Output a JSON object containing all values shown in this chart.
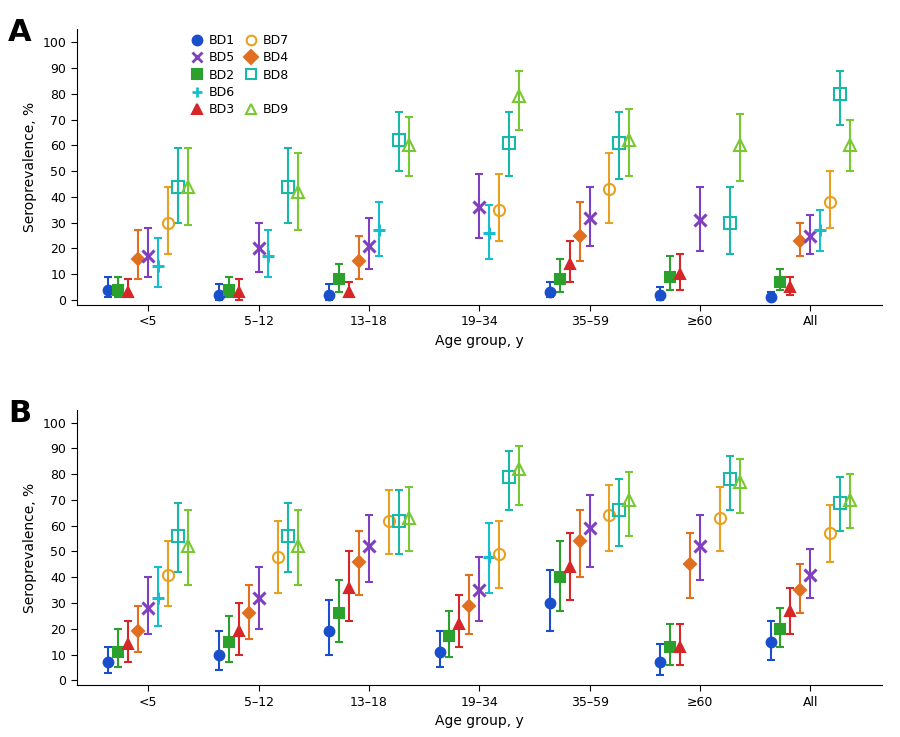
{
  "age_groups": [
    "<5",
    "5–12",
    "13–18",
    "19–34",
    "35–59",
    "≥60",
    "All"
  ],
  "age_x": [
    0,
    1,
    2,
    3,
    4,
    5,
    6
  ],
  "series_order": [
    "BD1",
    "BD2",
    "BD3",
    "BD4",
    "BD5",
    "BD6",
    "BD7",
    "BD8",
    "BD9"
  ],
  "series_info": {
    "BD1": {
      "color": "#1a4fcc",
      "marker": "o",
      "filled": true,
      "ms": 7,
      "mew": 1.5
    },
    "BD2": {
      "color": "#2ca02c",
      "marker": "s",
      "filled": true,
      "ms": 7,
      "mew": 1.5
    },
    "BD3": {
      "color": "#d62728",
      "marker": "^",
      "filled": true,
      "ms": 7,
      "mew": 1.5
    },
    "BD4": {
      "color": "#e07020",
      "marker": "D",
      "filled": true,
      "ms": 6,
      "mew": 1.5
    },
    "BD5": {
      "color": "#7f3fbf",
      "marker": "x",
      "filled": true,
      "ms": 8,
      "mew": 2.2
    },
    "BD6": {
      "color": "#17becf",
      "marker": "+",
      "filled": true,
      "ms": 9,
      "mew": 2.2
    },
    "BD7": {
      "color": "#e8a020",
      "marker": "o",
      "filled": false,
      "ms": 8,
      "mew": 1.5
    },
    "BD8": {
      "color": "#1ab8a8",
      "marker": "s",
      "filled": false,
      "ms": 8,
      "mew": 1.5
    },
    "BD9": {
      "color": "#78c832",
      "marker": "^",
      "filled": false,
      "ms": 8,
      "mew": 1.5
    }
  },
  "panel_A": {
    "BD1": {
      "y": [
        4,
        2,
        2,
        null,
        3,
        2,
        1
      ],
      "ylo": [
        1,
        0,
        0,
        null,
        1,
        0,
        0
      ],
      "yhi": [
        9,
        6,
        6,
        null,
        7,
        5,
        3
      ]
    },
    "BD2": {
      "y": [
        4,
        4,
        8,
        null,
        8,
        9,
        7
      ],
      "ylo": [
        1,
        1,
        3,
        null,
        3,
        4,
        4
      ],
      "yhi": [
        9,
        9,
        14,
        null,
        16,
        17,
        12
      ]
    },
    "BD3": {
      "y": [
        3,
        3,
        3,
        null,
        14,
        10,
        5
      ],
      "ylo": [
        1,
        0,
        1,
        null,
        7,
        4,
        2
      ],
      "yhi": [
        8,
        8,
        7,
        null,
        23,
        18,
        9
      ]
    },
    "BD4": {
      "y": [
        16,
        null,
        15,
        null,
        25,
        null,
        23
      ],
      "ylo": [
        8,
        null,
        8,
        null,
        15,
        null,
        17
      ],
      "yhi": [
        27,
        null,
        25,
        null,
        38,
        null,
        30
      ]
    },
    "BD5": {
      "y": [
        17,
        20,
        21,
        36,
        32,
        31,
        25
      ],
      "ylo": [
        9,
        11,
        12,
        24,
        21,
        19,
        18
      ],
      "yhi": [
        28,
        30,
        32,
        49,
        44,
        44,
        33
      ]
    },
    "BD6": {
      "y": [
        13,
        17,
        27,
        26,
        null,
        null,
        27
      ],
      "ylo": [
        5,
        9,
        17,
        16,
        null,
        null,
        19
      ],
      "yhi": [
        24,
        27,
        38,
        37,
        null,
        null,
        35
      ]
    },
    "BD7": {
      "y": [
        30,
        null,
        null,
        35,
        43,
        null,
        38
      ],
      "ylo": [
        18,
        null,
        null,
        23,
        30,
        null,
        28
      ],
      "yhi": [
        44,
        null,
        null,
        49,
        57,
        null,
        50
      ]
    },
    "BD8": {
      "y": [
        44,
        44,
        62,
        61,
        61,
        30,
        80
      ],
      "ylo": [
        30,
        30,
        50,
        48,
        47,
        18,
        68
      ],
      "yhi": [
        59,
        59,
        73,
        73,
        73,
        44,
        89
      ]
    },
    "BD9": {
      "y": [
        44,
        42,
        60,
        79,
        62,
        60,
        60
      ],
      "ylo": [
        29,
        27,
        48,
        66,
        48,
        46,
        50
      ],
      "yhi": [
        59,
        57,
        71,
        89,
        74,
        72,
        70
      ]
    }
  },
  "panel_B": {
    "BD1": {
      "y": [
        7,
        10,
        19,
        11,
        30,
        7,
        15
      ],
      "ylo": [
        3,
        4,
        10,
        5,
        19,
        2,
        8
      ],
      "yhi": [
        13,
        19,
        31,
        19,
        43,
        14,
        23
      ]
    },
    "BD2": {
      "y": [
        11,
        15,
        26,
        17,
        40,
        13,
        20
      ],
      "ylo": [
        5,
        7,
        15,
        9,
        27,
        6,
        13
      ],
      "yhi": [
        20,
        25,
        39,
        27,
        54,
        22,
        28
      ]
    },
    "BD3": {
      "y": [
        14,
        19,
        36,
        22,
        44,
        13,
        27
      ],
      "ylo": [
        7,
        10,
        23,
        13,
        31,
        6,
        18
      ],
      "yhi": [
        23,
        30,
        50,
        33,
        57,
        22,
        36
      ]
    },
    "BD4": {
      "y": [
        19,
        26,
        46,
        29,
        54,
        45,
        35
      ],
      "ylo": [
        11,
        16,
        33,
        18,
        40,
        32,
        26
      ],
      "yhi": [
        29,
        37,
        58,
        41,
        66,
        57,
        45
      ]
    },
    "BD5": {
      "y": [
        28,
        32,
        52,
        35,
        59,
        52,
        41
      ],
      "ylo": [
        18,
        20,
        38,
        23,
        44,
        39,
        32
      ],
      "yhi": [
        40,
        44,
        64,
        48,
        72,
        64,
        51
      ]
    },
    "BD6": {
      "y": [
        32,
        null,
        null,
        48,
        null,
        null,
        null
      ],
      "ylo": [
        21,
        null,
        null,
        34,
        null,
        null,
        null
      ],
      "yhi": [
        44,
        null,
        null,
        61,
        null,
        null,
        null
      ]
    },
    "BD7": {
      "y": [
        41,
        48,
        62,
        49,
        64,
        63,
        57
      ],
      "ylo": [
        29,
        34,
        49,
        36,
        50,
        50,
        46
      ],
      "yhi": [
        54,
        62,
        74,
        62,
        76,
        75,
        68
      ]
    },
    "BD8": {
      "y": [
        56,
        56,
        62,
        79,
        66,
        78,
        69
      ],
      "ylo": [
        42,
        42,
        49,
        66,
        52,
        66,
        58
      ],
      "yhi": [
        69,
        69,
        74,
        89,
        78,
        87,
        79
      ]
    },
    "BD9": {
      "y": [
        52,
        52,
        63,
        82,
        70,
        77,
        70
      ],
      "ylo": [
        37,
        37,
        50,
        68,
        56,
        65,
        59
      ],
      "yhi": [
        66,
        66,
        75,
        91,
        81,
        86,
        80
      ]
    }
  }
}
